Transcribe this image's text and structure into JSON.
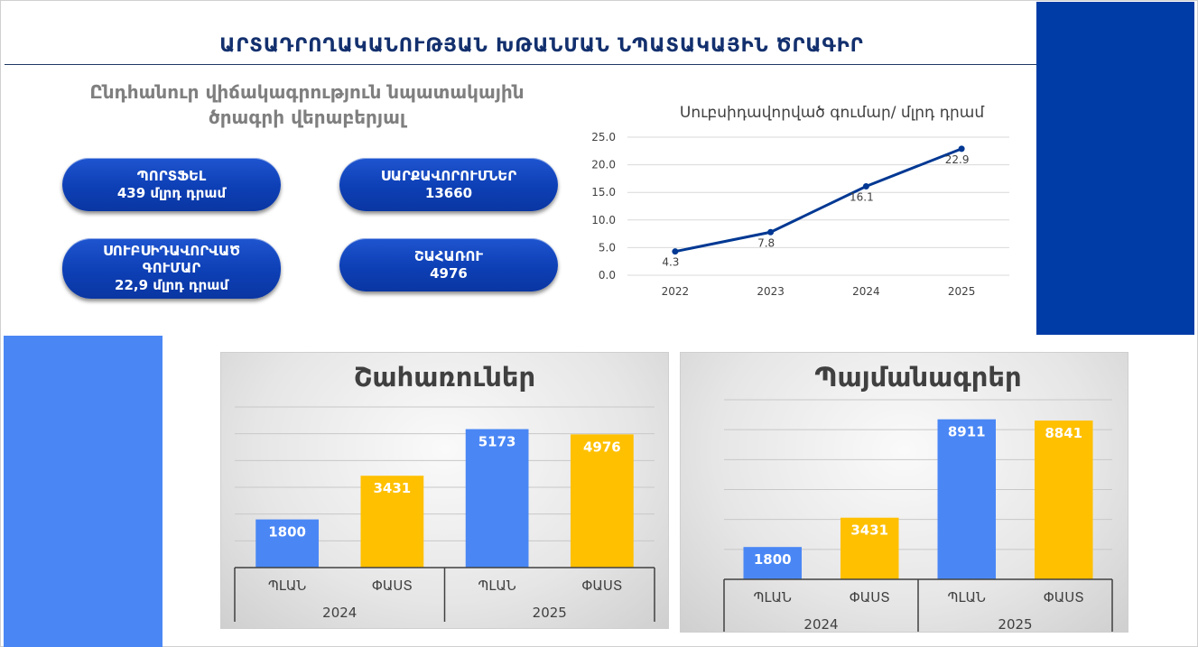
{
  "header": {
    "title": "ԱՐՏԱԴՐՈՂԱԿԱՆՈՒԹՅԱՆ ԽԹԱՆՄԱՆ ՆՊԱՏԱԿԱՅԻՆ ԾՐԱԳԻՐ",
    "subtitle_line1": "Ընդհանուր վիճակագրություն նպատակային",
    "subtitle_line2": "ծրագրի վերաբերյալ"
  },
  "stats": [
    {
      "line1": "ՊՈՐՏՖԵԼ",
      "line2": "439 մլրդ դրամ",
      "line3": ""
    },
    {
      "line1": "ՍԱՐՔԱՎՈՐՈՒՄՆԵՐ",
      "line2": "13660",
      "line3": ""
    },
    {
      "line1": "ՍՈՒԲՍԻԴԱՎՈՐՎԱԾ",
      "line2": "ԳՈՒՄԱՐ",
      "line3": "22,9 մլրդ դրամ"
    },
    {
      "line1": "ՇԱՀԱՌՈՒ",
      "line2": "4976",
      "line3": ""
    }
  ],
  "colors": {
    "dark_blue": "#003CA6",
    "light_blue": "#4A87F5",
    "plan": "#4A87F5",
    "fact": "#FFC000",
    "line": "#003893",
    "title": "#13306E"
  },
  "chart_data": [
    {
      "type": "line",
      "title": "Սուբսիդավորված գումար/ մլրդ դրամ",
      "x": [
        "2022",
        "2023",
        "2024",
        "2025"
      ],
      "series": [
        {
          "values": [
            4.3,
            7.8,
            16.1,
            22.9
          ]
        }
      ],
      "value_labels": [
        "4.3",
        "7.8",
        "16.1",
        "22.9"
      ],
      "yticks": [
        "0.0",
        "5.0",
        "10.0",
        "15.0",
        "20.0",
        "25.0"
      ],
      "ylim": [
        0,
        25
      ],
      "grid": true
    },
    {
      "type": "bar",
      "title": "Շահառուներ",
      "categories": [
        "ՊԼԱՆ",
        "ՓԱՍՏ",
        "ՊԼԱՆ",
        "ՓԱՍՏ"
      ],
      "groups": [
        "2024",
        "2025"
      ],
      "values": [
        1800,
        3431,
        5173,
        4976
      ],
      "value_labels": [
        "1800",
        "3431",
        "5173",
        "4976"
      ],
      "ylim": [
        0,
        6000
      ],
      "grid": true
    },
    {
      "type": "bar",
      "title": "Պայմանագրեր",
      "categories": [
        "ՊԼԱՆ",
        "ՓԱՍՏ",
        "ՊԼԱՆ",
        "ՓԱՍՏ"
      ],
      "groups": [
        "2024",
        "2025"
      ],
      "values": [
        1800,
        3431,
        8911,
        8841
      ],
      "value_labels": [
        "1800",
        "3431",
        "8911",
        "8841"
      ],
      "ylim": [
        0,
        10000
      ],
      "grid": true
    }
  ]
}
